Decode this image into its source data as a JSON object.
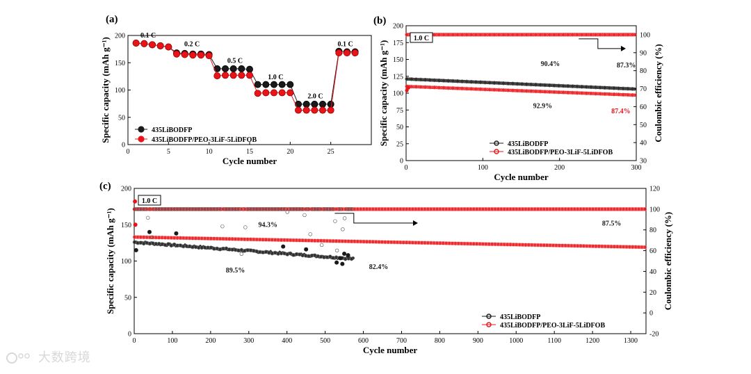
{
  "watermark": "大数跨境",
  "chart_data": [
    {
      "id": "a",
      "type": "scatter",
      "panel_label": "(a)",
      "xlabel": "Cycle number",
      "ylabel": "Specific capacity (mAh g⁻¹)",
      "xlim": [
        0,
        30
      ],
      "ylim": [
        0,
        200
      ],
      "xticks": [
        0,
        5,
        10,
        15,
        20,
        25
      ],
      "yticks": [
        0,
        50,
        100,
        150,
        200
      ],
      "rate_labels": [
        {
          "text": "0.1 C",
          "x": 2.5,
          "y": 196
        },
        {
          "text": "0.2 C",
          "x": 7.9,
          "y": 180
        },
        {
          "text": "0.5 C",
          "x": 13.2,
          "y": 150
        },
        {
          "text": "1.0 C",
          "x": 18.2,
          "y": 120
        },
        {
          "text": "2.0 C",
          "x": 23.1,
          "y": 85
        },
        {
          "text": "0.1 C",
          "x": 26.8,
          "y": 180
        }
      ],
      "legend": [
        "435LiBODFP",
        "435LiBODFP/PEO-3LiF-5LiDFOB"
      ],
      "series": [
        {
          "name": "435LiBODFP",
          "color": "#1a1a1a",
          "x": [
            1,
            2,
            3,
            4,
            5,
            6,
            7,
            8,
            9,
            10,
            11,
            12,
            13,
            14,
            15,
            16,
            17,
            18,
            19,
            20,
            21,
            22,
            23,
            24,
            25,
            26,
            27,
            28
          ],
          "y": [
            186,
            185,
            183,
            181,
            179,
            168,
            167,
            166,
            166,
            165,
            139,
            139,
            139,
            139,
            138,
            110,
            110,
            110,
            110,
            110,
            74,
            74,
            74,
            74,
            74,
            171,
            170,
            170
          ]
        },
        {
          "name": "435LiBODFP/PEO-3LiF-5LiDFOB",
          "color": "#e8141a",
          "x": [
            1,
            2,
            3,
            4,
            5,
            6,
            7,
            8,
            9,
            10,
            11,
            12,
            13,
            14,
            15,
            16,
            17,
            18,
            19,
            20,
            21,
            22,
            23,
            24,
            25,
            26,
            27,
            28
          ],
          "y": [
            186,
            185,
            183,
            181,
            179,
            166,
            165,
            164,
            164,
            163,
            126,
            127,
            127,
            127,
            127,
            94,
            95,
            95,
            95,
            95,
            63,
            63,
            63,
            63,
            63,
            168,
            168,
            168
          ]
        }
      ]
    },
    {
      "id": "b",
      "type": "scatter",
      "panel_label": "(b)",
      "xlabel": "Cycle number",
      "ylabel": "Specific capacity (mAh g⁻¹)",
      "y2label": "Coulombic efficiency (%)",
      "xlim": [
        0,
        300
      ],
      "ylim": [
        0,
        200
      ],
      "y2lim": [
        30,
        105
      ],
      "xticks": [
        0,
        100,
        200,
        300
      ],
      "yticks": [
        0,
        25,
        50,
        75,
        100,
        125,
        150,
        175,
        200
      ],
      "y2ticks": [
        30,
        40,
        50,
        60,
        70,
        80,
        90,
        100
      ],
      "rate_box": "1.0 C",
      "annotations": [
        {
          "text": "90.4%",
          "color": "#1a1a1a",
          "x": 188,
          "y": 140
        },
        {
          "text": "87.3%",
          "color": "#1a1a1a",
          "x": 287,
          "y": 138
        },
        {
          "text": "92.9%",
          "color": "#1a1a1a",
          "x": 178,
          "y": 78
        },
        {
          "text": "87.4%",
          "color": "#e8141a",
          "x": 280,
          "y": 70
        }
      ],
      "legend": [
        "435LiBODFP",
        "435LiBODFP/PEO-3LiF-5LiDFOB"
      ],
      "series": [
        {
          "name": "435LiBODFP",
          "color": "#1a1a1a",
          "axis": "left",
          "start": [
            1,
            121
          ],
          "end": [
            300,
            106
          ]
        },
        {
          "name": "435LiBODFP/PEO-3LiF-5LiDFOB",
          "color": "#e8141a",
          "axis": "left",
          "start": [
            1,
            110
          ],
          "end": [
            300,
            97
          ],
          "initial": [
            [
              1,
              104
            ],
            [
              3,
              108
            ]
          ]
        },
        {
          "name": "CE 435LiBODFP/PEO-3LiF-5LiDFOB",
          "color": "#e8141a",
          "axis": "right",
          "start": [
            1,
            100
          ],
          "end": [
            300,
            100
          ]
        }
      ]
    },
    {
      "id": "c",
      "type": "scatter",
      "panel_label": "(c)",
      "xlabel": "Cycle number",
      "ylabel": "Specific capacity (mAh g⁻¹)",
      "y2label": "Coulombic efficiency (%)",
      "xlim": [
        0,
        1340
      ],
      "ylim": [
        0,
        200
      ],
      "y2lim": [
        -20,
        120
      ],
      "xticks": [
        0,
        100,
        200,
        300,
        400,
        500,
        600,
        700,
        800,
        900,
        1000,
        1100,
        1200,
        1300
      ],
      "yticks": [
        0,
        50,
        100,
        150,
        200
      ],
      "y2ticks": [
        -20,
        0,
        20,
        40,
        60,
        80,
        100,
        120
      ],
      "rate_box": "1.0 C",
      "annotations": [
        {
          "text": "94.3%",
          "color": "#1a1a1a",
          "x": 350,
          "y": 147
        },
        {
          "text": "89.5%",
          "color": "#1a1a1a",
          "x": 265,
          "y": 84
        },
        {
          "text": "82.4%",
          "color": "#1a1a1a",
          "x": 640,
          "y": 89
        },
        {
          "text": "87.5%",
          "color": "#1a1a1a",
          "x": 1250,
          "y": 149
        }
      ],
      "legend": [
        "435LiBODFP",
        "435LiBODFP/PEO-3LiF-5LiDFOB"
      ],
      "series": [
        {
          "name": "435LiBODFP",
          "color": "#1a1a1a",
          "axis": "left",
          "start": [
            1,
            126
          ],
          "end": [
            575,
            103
          ]
        },
        {
          "name": "435LiBODFP/PEO-3LiF-5LiDFOB",
          "color": "#e8141a",
          "axis": "left",
          "start": [
            1,
            133
          ],
          "end": [
            1340,
            119
          ]
        },
        {
          "name": "CE 435LiBODFP/PEO-3LiF-5LiDFOB",
          "color": "#e8141a",
          "axis": "right",
          "start": [
            1,
            100
          ],
          "end": [
            1340,
            100
          ]
        },
        {
          "name": "CE 435LiBODFP",
          "color": "#444444",
          "axis": "right",
          "scatter_range": [
            1,
            575
          ]
        }
      ]
    }
  ]
}
